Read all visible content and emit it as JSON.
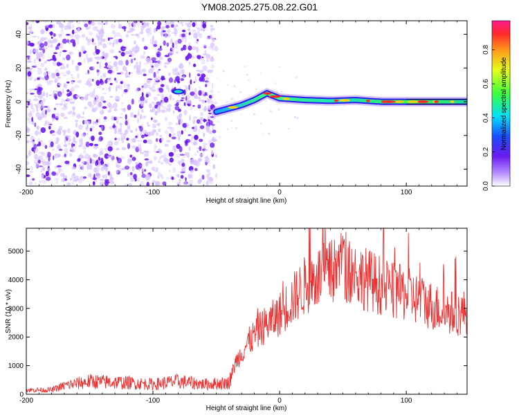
{
  "title": "YM08.2025.275.08.22.G01",
  "colors": {
    "purple_dark": "#6a1aee",
    "purple_light": "#d7c3ff",
    "snr_line": "#ef2f2f",
    "ridge_band": "#16d8a0"
  },
  "chart_data": [
    {
      "type": "heatmap",
      "title": "YM08.2025.275.08.22.G01",
      "xlabel": "Height of straight line (km)",
      "ylabel": "Frequency (Hz)",
      "xlim": [
        -200,
        148
      ],
      "ylim": [
        -50,
        48
      ],
      "xticks": [
        -200,
        -100,
        0,
        100
      ],
      "yticks": [
        -40,
        -20,
        0,
        20,
        40
      ],
      "xtick_labels": [
        "-200",
        "-100",
        "0",
        "100"
      ],
      "ytick_labels": [
        "-40",
        "-20",
        "0",
        "20",
        "40"
      ],
      "colorbar": {
        "label": "Normalized spectral amplitude",
        "range": [
          0,
          0.97
        ],
        "ticks": [
          0,
          0.2,
          0.4,
          0.6,
          0.8
        ],
        "tick_labels": [
          "0.0",
          "0.2",
          "0.4",
          "0.6",
          "0.8"
        ]
      },
      "noise_region_x": [
        -200,
        -50
      ],
      "ridge": {
        "x": [
          -50,
          -40,
          -30,
          -20,
          -10,
          0,
          20,
          40,
          60,
          80,
          100,
          120,
          148
        ],
        "y": [
          -6,
          -4,
          -2,
          1,
          5,
          2,
          1,
          0.5,
          1,
          0,
          0,
          0,
          0
        ]
      },
      "blob": {
        "x": [
          -85,
          -75
        ],
        "y": [
          5,
          7
        ]
      }
    },
    {
      "type": "line",
      "xlabel": "Height of straight line (km)",
      "ylabel": "SNR (10 * v/v)",
      "xlim": [
        -200,
        148
      ],
      "ylim": [
        0,
        5800
      ],
      "xticks": [
        -200,
        -100,
        0,
        100
      ],
      "yticks": [
        0,
        1000,
        2000,
        3000,
        4000,
        5000
      ],
      "xtick_labels": [
        "-200",
        "-100",
        "0",
        "100"
      ],
      "ytick_labels": [
        "0",
        "1000",
        "2000",
        "3000",
        "4000",
        "5000"
      ],
      "envelope": {
        "x": [
          -200,
          -180,
          -170,
          -150,
          -120,
          -100,
          -80,
          -60,
          -40,
          -35,
          -25,
          -15,
          -5,
          0,
          10,
          20,
          30,
          40,
          50,
          60,
          70,
          80,
          90,
          100,
          110,
          120,
          130,
          140,
          148
        ],
        "y": [
          150,
          150,
          300,
          450,
          400,
          350,
          450,
          350,
          400,
          1100,
          1800,
          2300,
          2600,
          2800,
          3300,
          3800,
          4100,
          4200,
          4500,
          4200,
          4000,
          3800,
          3600,
          3500,
          3300,
          3100,
          2900,
          2800,
          2900
        ]
      },
      "peak": {
        "x": 50,
        "y": 5750
      }
    }
  ]
}
